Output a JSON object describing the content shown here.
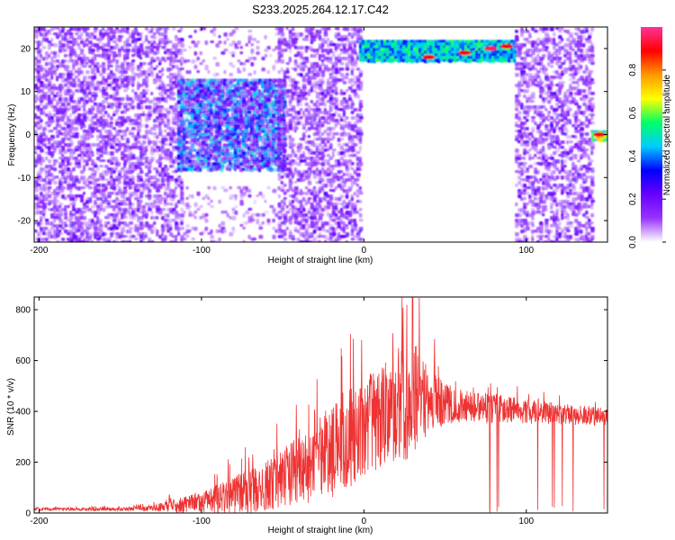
{
  "title": "S233.2025.264.12.17.C42",
  "chart_data": [
    {
      "type": "heatmap",
      "title": "S233.2025.264.12.17.C42",
      "xlabel": "Height of straight line (km)",
      "ylabel": "Frequency (Hz)",
      "xlim": [
        -203,
        150
      ],
      "ylim": [
        -25,
        25
      ],
      "xticks": [
        -200,
        -100,
        0,
        100
      ],
      "yticks": [
        -20,
        -10,
        0,
        10,
        20
      ],
      "colorbar": {
        "label": "Normalized spectral amplitude",
        "range": [
          0,
          1
        ],
        "ticks": [
          "0.0",
          "0.2",
          "0.4",
          "0.6",
          "0.8"
        ],
        "tick_values": [
          0,
          0.2,
          0.4,
          0.6,
          0.8
        ],
        "colors": [
          "#ffffff",
          "#9933ff",
          "#6600ff",
          "#0000ff",
          "#00ccff",
          "#00ff66",
          "#ffff00",
          "#ff9900",
          "#ff0000",
          "#ff3399"
        ]
      },
      "regions": [
        {
          "name": "scatter-left",
          "x": [
            -203,
            -113
          ],
          "y": [
            -25,
            25
          ],
          "density": 0.55,
          "level": 0.15
        },
        {
          "name": "scatter-upper-gap",
          "x": [
            -113,
            -53
          ],
          "y": [
            14,
            25
          ],
          "density": 0.15,
          "level": 0.1
        },
        {
          "name": "scatter-lower-gap",
          "x": [
            -113,
            -53
          ],
          "y": [
            -25,
            -12
          ],
          "density": 0.15,
          "level": 0.1
        },
        {
          "name": "cluster-center",
          "x": [
            -115,
            -50
          ],
          "y": [
            -8,
            13
          ],
          "density": 0.9,
          "level": 0.3
        },
        {
          "name": "scatter-mid",
          "x": [
            -53,
            -3
          ],
          "y": [
            -25,
            25
          ],
          "density": 0.5,
          "level": 0.15
        },
        {
          "name": "band-high",
          "x": [
            -3,
            93
          ],
          "y": [
            17,
            22
          ],
          "density": 1.0,
          "level": 0.45
        },
        {
          "name": "scatter-right",
          "x": [
            93,
            140
          ],
          "y": [
            -25,
            25
          ],
          "density": 0.5,
          "level": 0.15
        },
        {
          "name": "band-right",
          "x": [
            140,
            150
          ],
          "y": [
            -1,
            1
          ],
          "density": 1.0,
          "level": 0.6
        }
      ],
      "band_hotspots": [
        {
          "x": 40,
          "y": 18,
          "level": 0.9
        },
        {
          "x": 62,
          "y": 19,
          "level": 0.9
        },
        {
          "x": 78,
          "y": 20,
          "level": 0.95
        },
        {
          "x": 88,
          "y": 20.5,
          "level": 0.9
        },
        {
          "x": 145,
          "y": 0,
          "level": 0.9
        }
      ]
    },
    {
      "type": "line",
      "xlabel": "Height of straight line (km)",
      "ylabel": "SNR (10 * v/v)",
      "xlim": [
        -203,
        150
      ],
      "ylim": [
        0,
        850
      ],
      "xticks": [
        -200,
        -100,
        0,
        100
      ],
      "yticks": [
        0,
        200,
        400,
        600,
        800
      ],
      "line_color": "#ee3333",
      "envelope": {
        "x": [
          -203,
          -180,
          -150,
          -130,
          -120,
          -100,
          -90,
          -80,
          -70,
          -60,
          -50,
          -40,
          -30,
          -20,
          -10,
          0,
          10,
          20,
          30,
          40,
          50,
          60,
          80,
          100,
          120,
          150
        ],
        "base": [
          15,
          15,
          15,
          20,
          25,
          40,
          55,
          70,
          90,
          110,
          140,
          170,
          200,
          240,
          290,
          330,
          380,
          420,
          450,
          440,
          430,
          420,
          410,
          400,
          390,
          380
        ],
        "amp": [
          10,
          10,
          12,
          20,
          40,
          70,
          100,
          130,
          150,
          170,
          200,
          230,
          270,
          310,
          330,
          330,
          340,
          380,
          390,
          220,
          140,
          110,
          100,
          80,
          70,
          60
        ]
      },
      "peak_snr": 850,
      "peak_x": 30
    }
  ]
}
